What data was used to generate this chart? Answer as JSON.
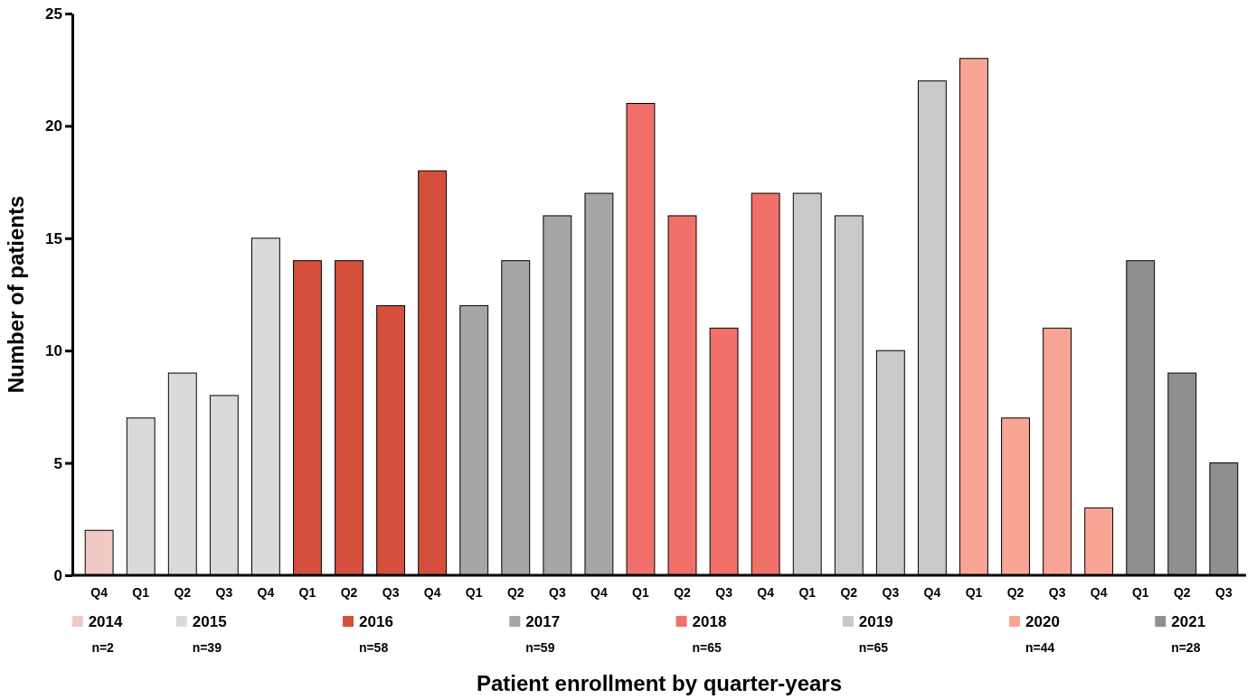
{
  "chart_data": {
    "type": "bar",
    "xlabel": "Patient enrollment by quarter-years",
    "ylabel": "Number of patients",
    "categories": [
      "Q4",
      "Q1",
      "Q2",
      "Q3",
      "Q4",
      "Q1",
      "Q2",
      "Q3",
      "Q4",
      "Q1",
      "Q2",
      "Q3",
      "Q4",
      "Q1",
      "Q2",
      "Q3",
      "Q4",
      "Q1",
      "Q2",
      "Q3",
      "Q4",
      "Q1",
      "Q2",
      "Q3",
      "Q4",
      "Q1",
      "Q2",
      "Q3"
    ],
    "series": [
      {
        "name": "2014",
        "color": "#f0c9c4",
        "values": [
          2,
          null,
          null,
          null,
          null,
          null,
          null,
          null,
          null,
          null,
          null,
          null,
          null,
          null,
          null,
          null,
          null,
          null,
          null,
          null,
          null,
          null,
          null,
          null,
          null,
          null,
          null,
          null
        ]
      },
      {
        "name": "2015",
        "color": "#dadada",
        "values": [
          null,
          7,
          9,
          8,
          15,
          null,
          null,
          null,
          null,
          null,
          null,
          null,
          null,
          null,
          null,
          null,
          null,
          null,
          null,
          null,
          null,
          null,
          null,
          null,
          null,
          null,
          null,
          null
        ]
      },
      {
        "name": "2016",
        "color": "#d4503c",
        "values": [
          null,
          null,
          null,
          null,
          null,
          14,
          14,
          12,
          18,
          null,
          null,
          null,
          null,
          null,
          null,
          null,
          null,
          null,
          null,
          null,
          null,
          null,
          null,
          null,
          null,
          null,
          null,
          null
        ]
      },
      {
        "name": "2017",
        "color": "#a6a6a6",
        "values": [
          null,
          null,
          null,
          null,
          null,
          null,
          null,
          null,
          null,
          12,
          14,
          16,
          17,
          null,
          null,
          null,
          null,
          null,
          null,
          null,
          null,
          null,
          null,
          null,
          null,
          null,
          null,
          null
        ]
      },
      {
        "name": "2018",
        "color": "#f2706a",
        "values": [
          null,
          null,
          null,
          null,
          null,
          null,
          null,
          null,
          null,
          null,
          null,
          null,
          null,
          21,
          16,
          11,
          17,
          null,
          null,
          null,
          null,
          null,
          null,
          null,
          null,
          null,
          null,
          null
        ]
      },
      {
        "name": "2019",
        "color": "#c9c9c9",
        "values": [
          null,
          null,
          null,
          null,
          null,
          null,
          null,
          null,
          null,
          null,
          null,
          null,
          null,
          null,
          null,
          null,
          null,
          17,
          16,
          10,
          22,
          null,
          null,
          null,
          null,
          null,
          null,
          null
        ]
      },
      {
        "name": "2020",
        "color": "#f8a595",
        "values": [
          null,
          null,
          null,
          null,
          null,
          null,
          null,
          null,
          null,
          null,
          null,
          null,
          null,
          null,
          null,
          null,
          null,
          null,
          null,
          null,
          null,
          23,
          7,
          11,
          3,
          null,
          null,
          null
        ]
      },
      {
        "name": "2021",
        "color": "#8f8f8f",
        "values": [
          null,
          null,
          null,
          null,
          null,
          null,
          null,
          null,
          null,
          null,
          null,
          null,
          null,
          null,
          null,
          null,
          null,
          null,
          null,
          null,
          null,
          null,
          null,
          null,
          null,
          14,
          9,
          5
        ]
      }
    ],
    "annotations": [
      "n=2",
      "n=39",
      "n=58",
      "n=59",
      "n=65",
      "n=65",
      "n=44",
      "n=28"
    ],
    "ylim": [
      0,
      25
    ],
    "yticks": [
      0,
      5,
      10,
      15,
      20,
      25
    ],
    "grid": false,
    "legend": "bottom"
  }
}
